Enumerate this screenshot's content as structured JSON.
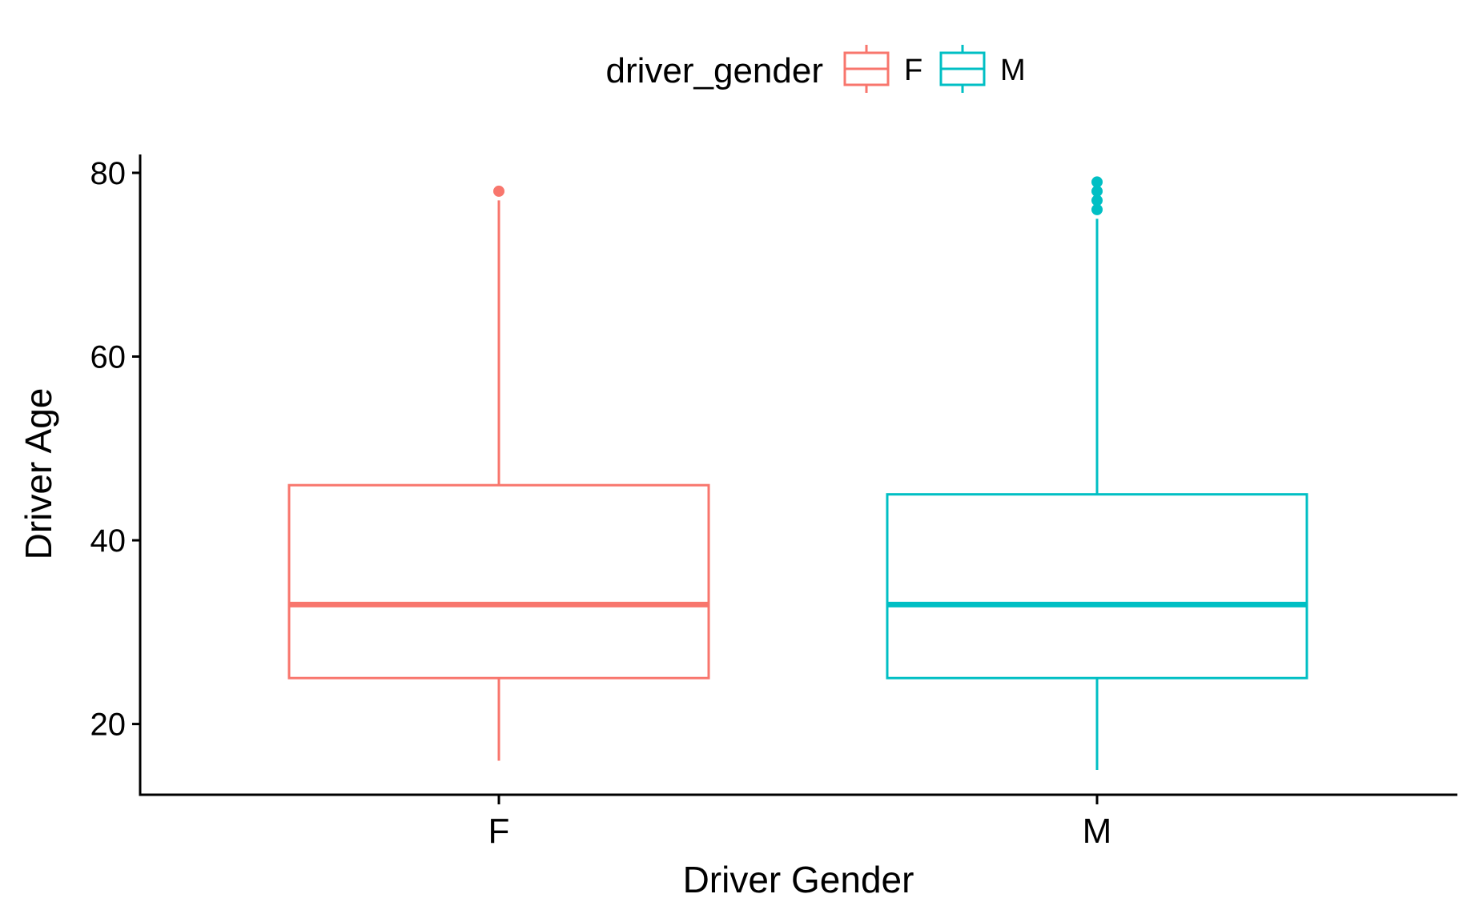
{
  "chart_data": {
    "type": "box",
    "title": "",
    "xlabel": "Driver Gender",
    "ylabel": "Driver Age",
    "ylim": [
      12.3,
      82
    ],
    "y_ticks": [
      20,
      40,
      60,
      80
    ],
    "grid": false,
    "legend": {
      "title": "driver_gender",
      "position": "top",
      "entries": [
        "F",
        "M"
      ]
    },
    "categories": [
      "F",
      "M"
    ],
    "series": [
      {
        "name": "F",
        "color": "#F8766D",
        "whisker_low": 16,
        "q1": 25,
        "median": 33,
        "q3": 46,
        "whisker_high": 77,
        "outliers": [
          78
        ]
      },
      {
        "name": "M",
        "color": "#00BFC4",
        "whisker_low": 15,
        "q1": 25,
        "median": 33,
        "q3": 45,
        "whisker_high": 75,
        "outliers": [
          76,
          77,
          78,
          79
        ]
      }
    ]
  }
}
